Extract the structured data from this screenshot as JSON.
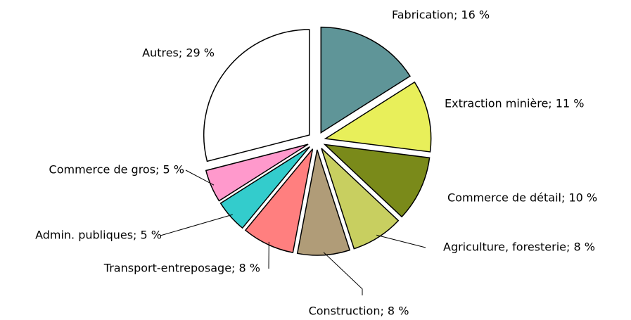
{
  "chart_data": {
    "type": "pie",
    "labels": [
      "Fabrication; 16 %",
      "Extraction minière; 11 %",
      "Commerce de détail; 10 %",
      "Agriculture, foresterie; 8 %",
      "Construction; 8 %",
      "Transport-entreposage; 8 %",
      "Admin. publiques; 5 %",
      "Commerce de gros; 5 %",
      "Autres; 29 %"
    ],
    "values": [
      16,
      11,
      10,
      8,
      8,
      8,
      5,
      5,
      29
    ],
    "colors": [
      "#5f9598",
      "#e8ef5a",
      "#7a8a1a",
      "#c8cf60",
      "#b09c78",
      "#ff7f7f",
      "#33cccc",
      "#ff99cc",
      "#ffffff"
    ],
    "exploded": true
  }
}
